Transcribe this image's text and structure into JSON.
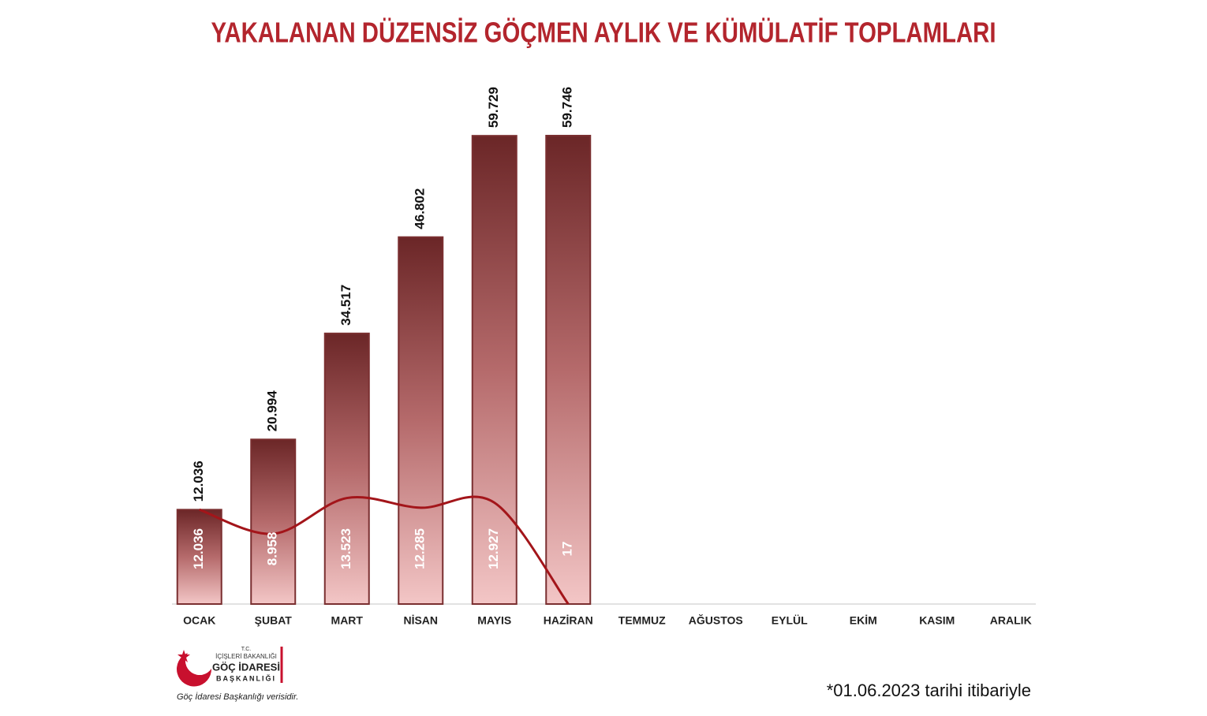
{
  "chart_data": {
    "type": "bar",
    "title": "YAKALANAN DÜZENSİZ GÖÇMEN AYLIK VE KÜMÜLATİF TOPLAMLARI",
    "categories": [
      "OCAK",
      "ŞUBAT",
      "MART",
      "NİSAN",
      "MAYIS",
      "HAZİRAN",
      "TEMMUZ",
      "AĞUSTOS",
      "EYLÜL",
      "EKİM",
      "KASIM",
      "ARALIK"
    ],
    "series": [
      {
        "type": "bar",
        "color": "#7a2f30",
        "values": [
          12036,
          20994,
          34517,
          46802,
          59729,
          59746,
          null,
          null,
          null,
          null,
          null,
          null
        ],
        "value_labels": [
          "12.036",
          "20.994",
          "34.517",
          "46.802",
          "59.729",
          "59.746",
          null,
          null,
          null,
          null,
          null,
          null
        ]
      },
      {
        "type": "line",
        "color": "#a3151a",
        "values": [
          12036,
          8958,
          13523,
          12285,
          12927,
          17,
          null,
          null,
          null,
          null,
          null,
          null
        ],
        "value_labels": [
          "12.036",
          "8.958",
          "13.523",
          "12.285",
          "12.927",
          "17",
          null,
          null,
          null,
          null,
          null,
          null
        ]
      }
    ]
  },
  "footnote": "*01.06.2023 tarihi itibariyle",
  "logo": {
    "line1": "T.C.",
    "line2": "İÇİŞLERİ BAKANLIĞI",
    "line3": "GÖÇ İDARESİ",
    "line4": "BAŞKANLIĞI"
  },
  "source": "Göç İdaresi Başkanlığı verisidir."
}
